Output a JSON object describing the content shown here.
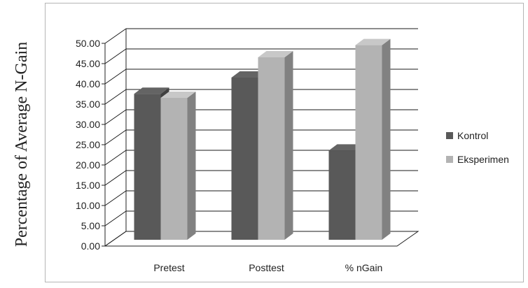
{
  "chart_data": {
    "type": "bar",
    "style": "3d-clustered-column",
    "title": "",
    "xlabel": "",
    "ylabel": "Percentage of Average N-Gain",
    "categories": [
      "Pretest",
      "Posttest",
      "% nGain"
    ],
    "series": [
      {
        "name": "Kontrol",
        "values": [
          36,
          40,
          22
        ],
        "color": "#595959"
      },
      {
        "name": "Eksperimen",
        "values": [
          35,
          45,
          48
        ],
        "color": "#b3b3b3"
      }
    ],
    "ylim": [
      0,
      50
    ],
    "yticks": [
      "0.00",
      "5.00",
      "10.00",
      "15.00",
      "20.00",
      "25.00",
      "30.00",
      "35.00",
      "40.00",
      "45.00",
      "50.00"
    ],
    "grid": true,
    "legend_position": "right"
  }
}
